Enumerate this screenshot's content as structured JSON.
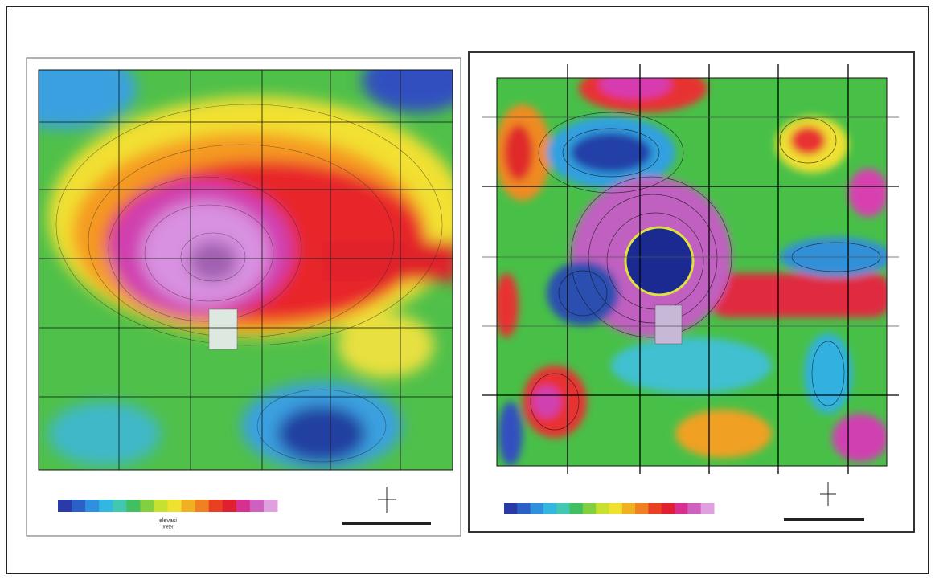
{
  "left_map": {
    "legend_title": "elevasi",
    "legend_unit": "(meter)"
  }
}
